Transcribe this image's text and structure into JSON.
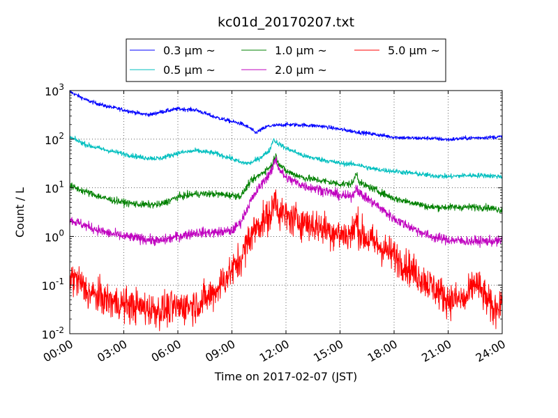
{
  "chart_data": {
    "type": "line",
    "title": "kc01d_20170207.txt",
    "xlabel": "Time on 2017-02-07 (JST)",
    "ylabel": "Count / L",
    "x_axis": {
      "type": "time",
      "range_hours": [
        0,
        24
      ],
      "tick_hours": [
        0,
        3,
        6,
        9,
        12,
        15,
        18,
        21,
        24
      ],
      "tick_labels": [
        "00:00",
        "03:00",
        "06:00",
        "09:00",
        "12:00",
        "15:00",
        "18:00",
        "21:00",
        "24:00"
      ]
    },
    "y_axis": {
      "scale": "log",
      "range": [
        0.01,
        1000
      ],
      "ticks": [
        0.01,
        0.1,
        1,
        10,
        100,
        1000
      ],
      "tick_base": "10",
      "tick_exponents": [
        "-2",
        "-1",
        "0",
        "1",
        "2",
        "3"
      ]
    },
    "grid": true,
    "legend": {
      "placement": "top-center",
      "rows": [
        [
          "0.3",
          "1.0",
          "5.0"
        ],
        [
          "0.5",
          "2.0"
        ]
      ]
    },
    "series": [
      {
        "name": "0.3 μm ~",
        "size": "0.3",
        "color": "#0000ff",
        "noise": 0.04,
        "x": [
          0,
          1,
          2,
          3,
          4,
          4.5,
          5,
          6,
          7,
          8,
          9,
          9.5,
          10,
          10.3,
          11,
          12,
          13,
          14,
          15,
          16,
          17,
          18,
          19,
          20,
          21,
          22,
          23,
          24
        ],
        "y": [
          950,
          620,
          480,
          400,
          330,
          320,
          360,
          420,
          400,
          290,
          230,
          210,
          170,
          135,
          185,
          200,
          195,
          185,
          160,
          140,
          125,
          110,
          105,
          105,
          98,
          105,
          108,
          112
        ]
      },
      {
        "name": "0.5 μm ~",
        "size": "0.5",
        "color": "#00bfbf",
        "noise": 0.05,
        "x": [
          0,
          1,
          2,
          3,
          4,
          5,
          6,
          7,
          8,
          9,
          9.5,
          10,
          10.5,
          11,
          11.5,
          12,
          12.5,
          13,
          14,
          15,
          16,
          16.5,
          17,
          18,
          19,
          20,
          21,
          22,
          23,
          24
        ],
        "y": [
          110,
          75,
          60,
          50,
          42,
          40,
          52,
          58,
          52,
          40,
          33,
          32,
          40,
          55,
          85,
          65,
          55,
          45,
          38,
          32,
          30,
          26,
          24,
          22,
          20,
          18,
          17,
          18,
          18,
          17
        ],
        "spikes": [
          [
            11.3,
            98
          ]
        ]
      },
      {
        "name": "1.0 μm ~",
        "size": "1.0",
        "color": "#008000",
        "noise": 0.07,
        "x": [
          0,
          1,
          2,
          3,
          4,
          5,
          6,
          7,
          8,
          9,
          9.5,
          10,
          10.5,
          11,
          11.5,
          12,
          13,
          14,
          15,
          15.5,
          16,
          17,
          18,
          19,
          20,
          21,
          22,
          23,
          24
        ],
        "y": [
          11,
          8,
          6,
          5,
          4.5,
          4.5,
          6.5,
          7.5,
          7.5,
          7,
          6.8,
          13,
          18,
          25,
          35,
          22,
          16,
          14,
          12,
          12,
          13,
          9,
          6,
          5,
          4,
          4,
          4,
          4,
          3.5
        ],
        "spikes": [
          [
            11.4,
            45
          ],
          [
            15.9,
            20
          ]
        ]
      },
      {
        "name": "2.0 μm ~",
        "size": "2.0",
        "color": "#bf00bf",
        "noise": 0.1,
        "x": [
          0,
          1,
          2,
          3,
          4,
          5,
          6,
          7,
          8,
          9,
          9.5,
          10,
          10.5,
          11,
          11.5,
          12,
          13,
          14,
          15,
          15.5,
          16,
          17,
          18,
          19,
          20,
          21,
          22,
          23,
          24
        ],
        "y": [
          2.2,
          1.6,
          1.2,
          1.0,
          0.9,
          0.8,
          1.0,
          1.2,
          1.2,
          1.3,
          2.0,
          5,
          10,
          18,
          28,
          16,
          11,
          9,
          7,
          6.5,
          8,
          4.5,
          2.3,
          1.5,
          1.0,
          0.85,
          0.8,
          0.8,
          0.8
        ],
        "spikes": [
          [
            11.4,
            38
          ],
          [
            15.9,
            10
          ]
        ]
      },
      {
        "name": "5.0 μm ~",
        "size": "5.0",
        "color": "#ff0000",
        "noise": 0.35,
        "x": [
          0,
          0.5,
          1,
          2,
          3,
          4,
          5,
          6,
          7,
          7.5,
          8,
          8.5,
          9,
          9.5,
          10,
          10.5,
          11,
          11.5,
          12,
          13,
          14,
          15,
          15.5,
          16,
          16.5,
          17,
          18,
          19,
          20,
          21,
          22,
          22.5,
          23,
          23.5,
          24
        ],
        "y": [
          0.15,
          0.12,
          0.07,
          0.05,
          0.04,
          0.035,
          0.03,
          0.035,
          0.04,
          0.05,
          0.07,
          0.12,
          0.2,
          0.35,
          1.0,
          1.8,
          2.5,
          3.5,
          2.5,
          2.0,
          1.5,
          1.1,
          1.1,
          1.3,
          0.9,
          0.7,
          0.4,
          0.2,
          0.1,
          0.05,
          0.05,
          0.12,
          0.06,
          0.03,
          0.05
        ],
        "spikes": [
          [
            11.4,
            6.5
          ],
          [
            15.9,
            2.0
          ]
        ]
      }
    ]
  }
}
